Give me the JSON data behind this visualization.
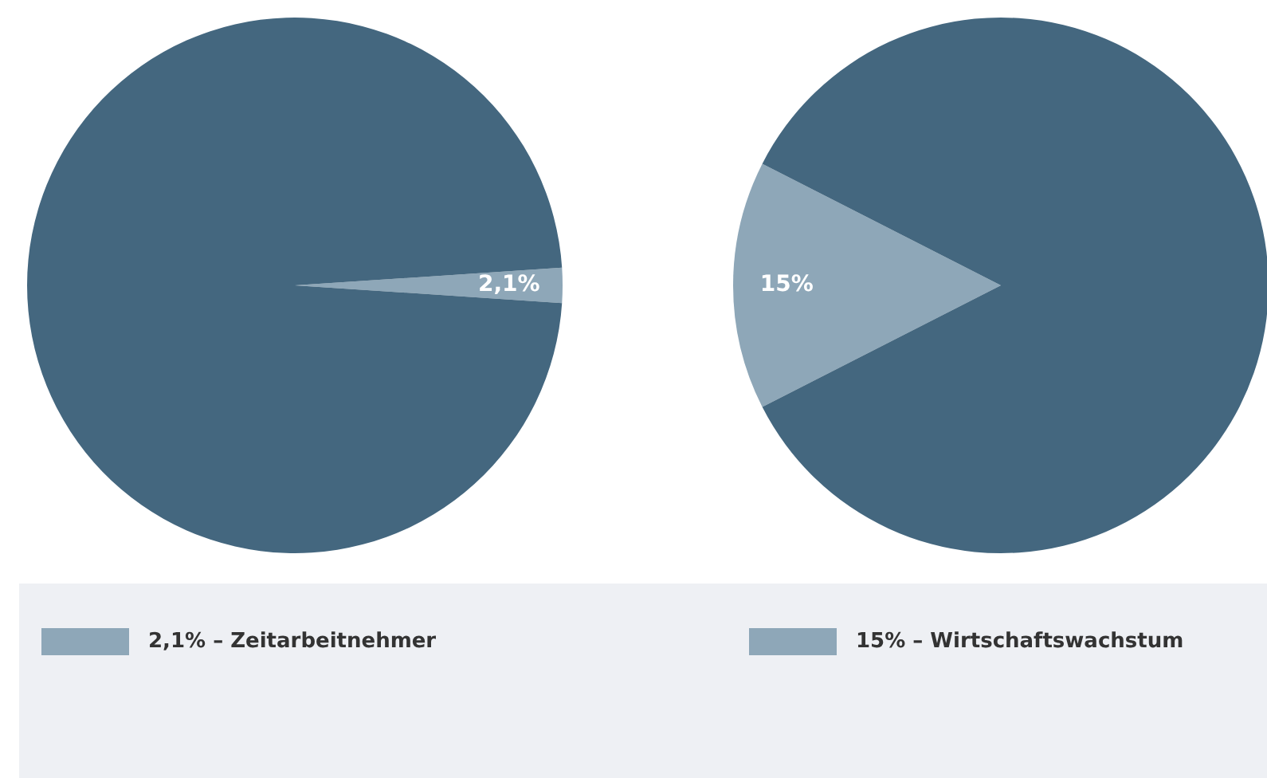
{
  "chart_data": [
    {
      "type": "pie",
      "categories": [
        "2,1% – Zeitarbeitnehmer",
        null
      ],
      "values": [
        2.1,
        97.9
      ],
      "colors": [
        "#8ea7b8",
        "#44677f"
      ],
      "value_labels": [
        "2,1%",
        null
      ],
      "legend": "bottom"
    },
    {
      "type": "pie",
      "categories": [
        "15% – Wirtschaftswachstum",
        null
      ],
      "values": [
        15,
        85
      ],
      "colors": [
        "#8ea7b8",
        "#44677f"
      ],
      "value_labels": [
        "15%",
        null
      ],
      "legend": "bottom"
    }
  ]
}
